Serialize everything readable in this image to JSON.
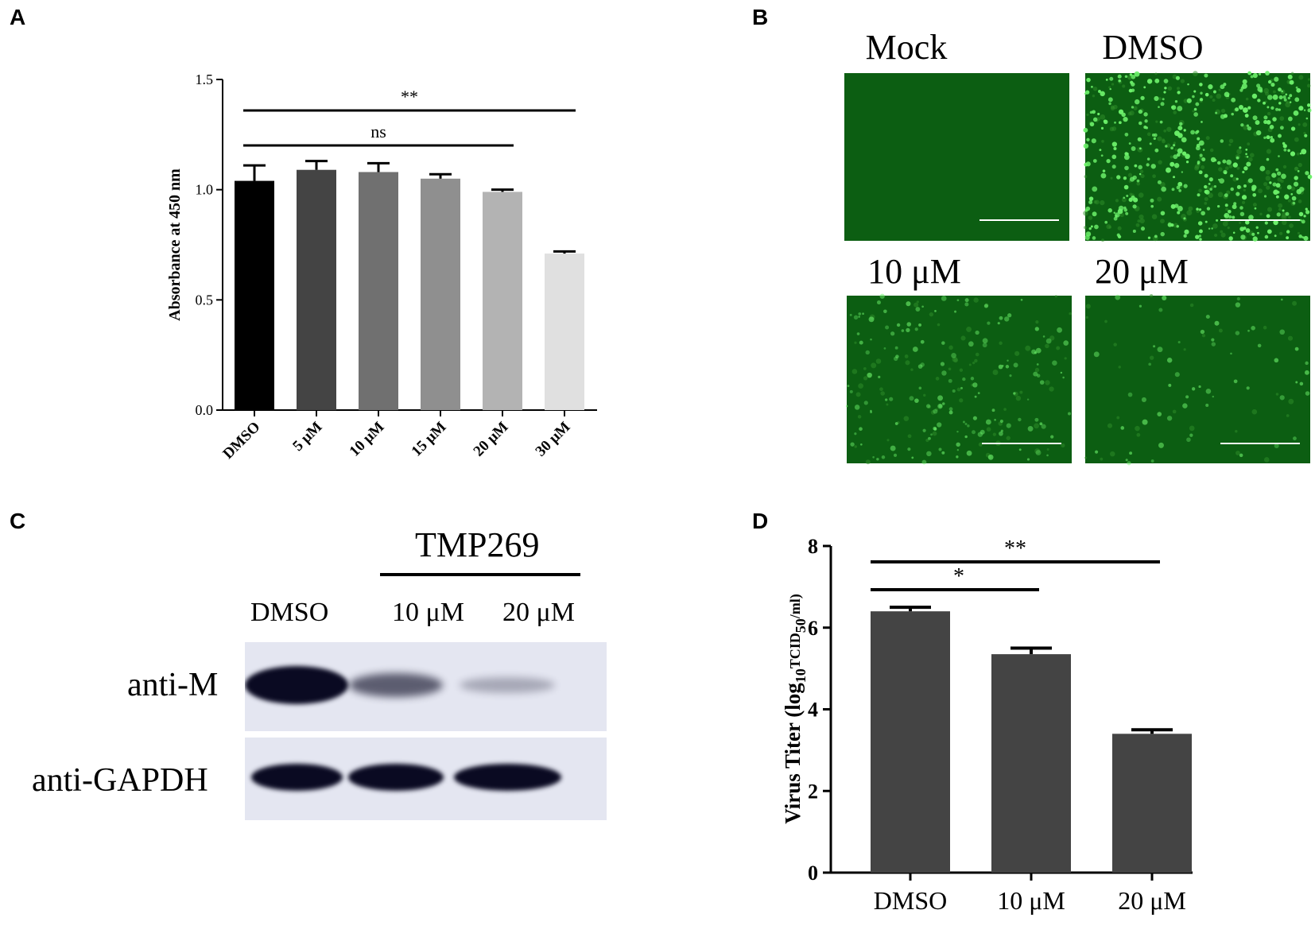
{
  "panels": {
    "a": "A",
    "b": "B",
    "c": "C",
    "d": "D"
  },
  "chart_data": [
    {
      "type": "bar",
      "panel": "A",
      "categories": [
        "DMSO",
        "5 μM",
        "10 μM",
        "15 μM",
        "20 μM",
        "30 μM"
      ],
      "values": [
        1.04,
        1.09,
        1.08,
        1.05,
        0.99,
        0.71
      ],
      "errors": [
        0.07,
        0.04,
        0.04,
        0.02,
        0.01,
        0.01
      ],
      "colors": [
        "#000000",
        "#444444",
        "#707070",
        "#8f8f8f",
        "#b3b3b3",
        "#e0e0e0"
      ],
      "ylabel": "Absorbance at 450 nm",
      "ylim": [
        0,
        1.5
      ],
      "yticks": [
        "0.0",
        "0.5",
        "1.0",
        "1.5"
      ],
      "ytick_values": [
        0,
        0.5,
        1.0,
        1.5
      ],
      "significance": [
        {
          "label": "**",
          "from": 0,
          "to": 5
        },
        {
          "label": "ns",
          "from": 0,
          "to": 4
        }
      ]
    },
    {
      "type": "bar",
      "panel": "D",
      "categories": [
        "DMSO",
        "10 μM",
        "20 μM"
      ],
      "values": [
        6.4,
        5.35,
        3.4
      ],
      "errors": [
        0.1,
        0.15,
        0.1
      ],
      "colors": [
        "#444444",
        "#444444",
        "#444444"
      ],
      "ylabel": "Virus Titer (log10TCID50/ml)",
      "ylabel_parts": [
        "Virus Titer (log",
        "10",
        "TCID",
        "50",
        "/ml)"
      ],
      "ylim": [
        0,
        8
      ],
      "yticks": [
        "0",
        "2",
        "4",
        "6",
        "8"
      ],
      "ytick_values": [
        0,
        2,
        4,
        6,
        8
      ],
      "significance": [
        {
          "label": "**",
          "from": 0,
          "to": 2
        },
        {
          "label": "*",
          "from": 0,
          "to": 1
        }
      ]
    }
  ],
  "panel_b": {
    "images": [
      {
        "title": "Mock",
        "cells": 0
      },
      {
        "title": "DMSO",
        "cells": 420
      },
      {
        "title": "10 μM",
        "cells": 160
      },
      {
        "title": "20 μM",
        "cells": 60
      }
    ],
    "background_color": "#0c5e12",
    "cell_color": "#6cf06a"
  },
  "panel_c": {
    "treatment": "TMP269",
    "lanes": [
      "DMSO",
      "10 μM",
      "20 μM"
    ],
    "rows": [
      {
        "label": "anti-M",
        "intensities": [
          1.0,
          0.55,
          0.15
        ]
      },
      {
        "label": "anti-GAPDH",
        "intensities": [
          1.0,
          1.0,
          1.0
        ]
      }
    ],
    "blot_background": "#e4e6f1",
    "band_color": "#0a0a22"
  }
}
